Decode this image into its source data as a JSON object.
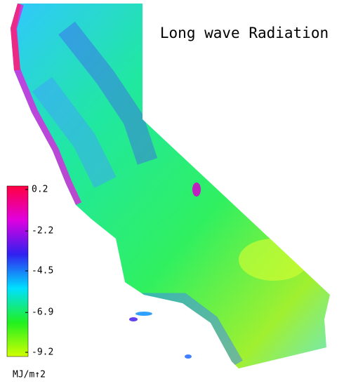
{
  "title": "Long wave Radiation",
  "colorbar": {
    "ticks": [
      0.2,
      -2.2,
      -4.5,
      -6.9,
      -9.2
    ],
    "unit": "MJ/m↑2",
    "colors": [
      "#ff0040",
      "#e000e0",
      "#3020f0",
      "#00e0ff",
      "#20f020",
      "#d0ff00"
    ]
  }
}
